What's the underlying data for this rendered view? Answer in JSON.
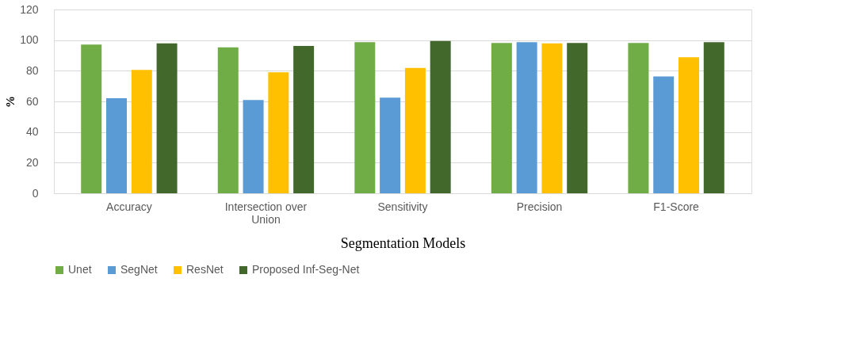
{
  "chart_data": {
    "type": "bar",
    "xlabel": "Segmentation Models",
    "ylabel": "%",
    "categories": [
      "Accuracy",
      "Intersection over Union",
      "Sensitivity",
      "Precision",
      "F1-Score"
    ],
    "series": [
      {
        "name": "Unet",
        "color": "#70ad47",
        "values": [
          97.1,
          95.3,
          98.7,
          98.2,
          98.2
        ]
      },
      {
        "name": "SegNet",
        "color": "#5b9bd5",
        "values": [
          62.1,
          60.9,
          62.4,
          98.6,
          76.3
        ]
      },
      {
        "name": "ResNet",
        "color": "#ffc000",
        "values": [
          80.5,
          79.0,
          81.8,
          97.9,
          88.9
        ]
      },
      {
        "name": "Proposed Inf-Seg-Net",
        "color": "#43682b",
        "values": [
          97.9,
          96.2,
          99.5,
          98.2,
          98.6
        ]
      }
    ],
    "ylim": [
      0,
      120
    ],
    "yticks": [
      0,
      20,
      40,
      60,
      80,
      100,
      120
    ],
    "grid": "y",
    "legend": "bottom"
  }
}
